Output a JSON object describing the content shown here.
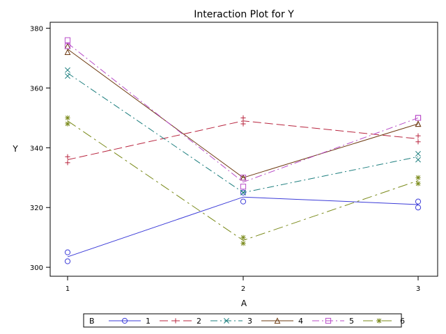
{
  "chart_data": {
    "type": "line",
    "title": "Interaction Plot for Y",
    "xlabel": "A",
    "ylabel": "Y",
    "x_categories": [
      "1",
      "2",
      "3"
    ],
    "ylim": [
      297,
      382
    ],
    "yticks": [
      300,
      320,
      340,
      360,
      380
    ],
    "legend_title": "B",
    "legend_position": "bottom",
    "grid": false,
    "series": [
      {
        "name": "1",
        "color": "#3b3bd8",
        "marker": "circle",
        "dash": "solid",
        "mean": [
          303.5,
          323.5,
          321
        ],
        "points": [
          [
            1,
            305
          ],
          [
            1,
            302
          ],
          [
            2,
            325
          ],
          [
            2,
            322
          ],
          [
            3,
            322
          ],
          [
            3,
            320
          ]
        ]
      },
      {
        "name": "2",
        "color": "#b8243e",
        "marker": "plus",
        "dash": "long-dash",
        "mean": [
          336,
          349,
          343
        ],
        "points": [
          [
            1,
            337
          ],
          [
            1,
            335
          ],
          [
            2,
            350
          ],
          [
            2,
            348
          ],
          [
            3,
            344
          ],
          [
            3,
            342
          ]
        ]
      },
      {
        "name": "3",
        "color": "#1e7f7f",
        "marker": "x",
        "dash": "dash-dot",
        "mean": [
          365,
          325,
          337
        ],
        "points": [
          [
            1,
            366
          ],
          [
            1,
            364
          ],
          [
            2,
            325
          ],
          [
            2,
            325
          ],
          [
            3,
            338
          ],
          [
            3,
            336
          ]
        ]
      },
      {
        "name": "4",
        "color": "#6e3b12",
        "marker": "triangle",
        "dash": "solid",
        "mean": [
          373,
          330,
          348
        ],
        "points": [
          [
            1,
            374
          ],
          [
            1,
            372
          ],
          [
            2,
            330
          ],
          [
            2,
            330
          ],
          [
            3,
            348
          ],
          [
            3,
            348
          ]
        ]
      },
      {
        "name": "5",
        "color": "#b84cc8",
        "marker": "square",
        "dash": "dash-dot",
        "mean": [
          375,
          328.5,
          350
        ],
        "points": [
          [
            1,
            376
          ],
          [
            1,
            374
          ],
          [
            2,
            330
          ],
          [
            2,
            327
          ],
          [
            3,
            350
          ],
          [
            3,
            350
          ]
        ]
      },
      {
        "name": "6",
        "color": "#7a8a1a",
        "marker": "star",
        "dash": "long-dash-dot",
        "mean": [
          349,
          309,
          329
        ],
        "points": [
          [
            1,
            350
          ],
          [
            1,
            348
          ],
          [
            2,
            310
          ],
          [
            2,
            308
          ],
          [
            3,
            330
          ],
          [
            3,
            328
          ]
        ]
      }
    ]
  }
}
